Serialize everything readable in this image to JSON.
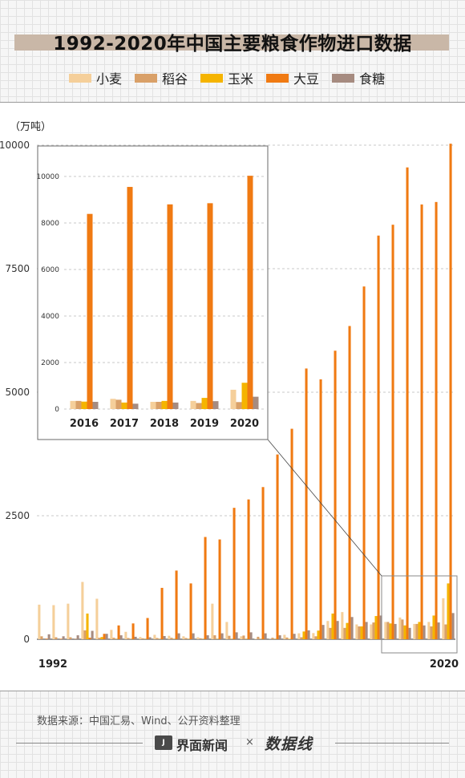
{
  "title": "1992-2020年中国主要粮食作物进口数据",
  "unit_label": "（万吨）",
  "source": "数据来源：中国汇易、Wind、公开资料整理",
  "footer": {
    "brand": "界面新闻",
    "times": "×",
    "logo": "数据线"
  },
  "chart_data": {
    "type": "bar",
    "title": "1992-2020年中国主要粮食作物进口数据",
    "ylabel": "（万吨）",
    "ylim": [
      0,
      10000
    ],
    "yticks": [
      0,
      2500,
      5000,
      7500,
      10000
    ],
    "x_tick_labels": [
      "1992",
      "2020"
    ],
    "x": [
      1992,
      1993,
      1994,
      1995,
      1996,
      1997,
      1998,
      1999,
      2000,
      2001,
      2002,
      2003,
      2004,
      2005,
      2006,
      2007,
      2008,
      2009,
      2010,
      2011,
      2012,
      2013,
      2014,
      2015,
      2016,
      2017,
      2018,
      2019,
      2020
    ],
    "legend_position": "top",
    "series": [
      {
        "name": "小麦",
        "color": "#f5cf9a",
        "values": [
          700,
          690,
          720,
          1160,
          820,
          190,
          150,
          45,
          90,
          70,
          60,
          40,
          720,
          350,
          60,
          10,
          5,
          90,
          120,
          125,
          370,
          550,
          300,
          300,
          350,
          440,
          310,
          350,
          830
        ]
      },
      {
        "name": "稻谷",
        "color": "#d9a068",
        "values": [
          60,
          40,
          40,
          180,
          30,
          30,
          25,
          20,
          25,
          30,
          25,
          20,
          80,
          70,
          75,
          50,
          30,
          35,
          40,
          60,
          230,
          230,
          260,
          340,
          350,
          400,
          310,
          260,
          300
        ]
      },
      {
        "name": "玉米",
        "color": "#f5b400",
        "values": [
          0,
          0,
          0,
          520,
          45,
          5,
          5,
          5,
          5,
          5,
          5,
          5,
          5,
          5,
          5,
          5,
          5,
          8,
          157,
          175,
          520,
          330,
          260,
          470,
          320,
          280,
          350,
          480,
          1130
        ]
      },
      {
        "name": "大豆",
        "color": "#f07a12",
        "values": [
          12,
          10,
          5,
          30,
          110,
          280,
          320,
          430,
          1040,
          1390,
          1130,
          2070,
          2020,
          2660,
          2830,
          3080,
          3740,
          4260,
          5480,
          5260,
          5840,
          6340,
          7140,
          8170,
          8390,
          9550,
          8800,
          8850,
          10030
        ]
      },
      {
        "name": "食糖",
        "color": "#a68b80",
        "values": [
          100,
          60,
          80,
          170,
          110,
          80,
          50,
          40,
          65,
          120,
          120,
          80,
          120,
          140,
          140,
          120,
          80,
          110,
          180,
          290,
          370,
          450,
          350,
          480,
          310,
          230,
          280,
          340,
          530
        ]
      }
    ],
    "inset": {
      "x": [
        2016,
        2017,
        2018,
        2019,
        2020
      ],
      "ylim": [
        0,
        10000
      ],
      "yticks": [
        0,
        2000,
        4000,
        6000,
        8000,
        10000
      ],
      "series_values": {
        "小麦": [
          350,
          440,
          310,
          350,
          830
        ],
        "稻谷": [
          350,
          400,
          310,
          260,
          300
        ],
        "玉米": [
          320,
          280,
          350,
          480,
          1130
        ],
        "大豆": [
          8390,
          9550,
          8800,
          8850,
          10030
        ],
        "食糖": [
          310,
          230,
          280,
          340,
          530
        ]
      }
    }
  }
}
